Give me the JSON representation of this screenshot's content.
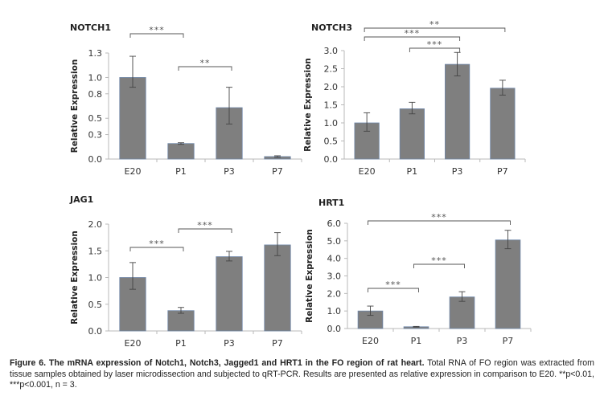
{
  "chart_data": [
    {
      "type": "bar",
      "title": "NOTCH1",
      "xlabel": "",
      "ylabel": "Relative Expression",
      "categories": [
        "E20",
        "P1",
        "P3",
        "P7"
      ],
      "values": [
        1.0,
        0.19,
        0.63,
        0.03
      ],
      "error_low": [
        0.88,
        0.18,
        0.43,
        0.02
      ],
      "error_high": [
        1.26,
        0.2,
        0.88,
        0.04
      ],
      "ylim": [
        0,
        1.3
      ],
      "yticks": [
        0.0,
        0.3,
        0.5,
        0.8,
        1.0,
        1.3
      ],
      "ytick_labels": [
        "0.0",
        "0.3",
        "0.5",
        "0.8",
        "1.0",
        "1.3"
      ],
      "grid": false,
      "bar_color": "#7f7f7f",
      "significance": [
        {
          "from": "E20",
          "to": "P1",
          "label": "***"
        },
        {
          "from": "P1",
          "to": "P3",
          "label": "**"
        }
      ]
    },
    {
      "type": "bar",
      "title": "NOTCH3",
      "xlabel": "",
      "ylabel": "Relative Expression",
      "categories": [
        "E20",
        "P1",
        "P3",
        "P7"
      ],
      "values": [
        1.0,
        1.39,
        2.62,
        1.96
      ],
      "error_low": [
        0.77,
        1.25,
        2.3,
        1.77
      ],
      "error_high": [
        1.28,
        1.57,
        2.95,
        2.18
      ],
      "ylim": [
        0,
        3.0
      ],
      "yticks": [
        0.0,
        0.5,
        1.0,
        1.5,
        2.0,
        2.5,
        3.0
      ],
      "ytick_labels": [
        "0.0",
        "0.5",
        "1.0",
        "1.5",
        "2.0",
        "2.5",
        "3.0"
      ],
      "grid": false,
      "bar_color": "#7f7f7f",
      "significance": [
        {
          "from": "E20",
          "to": "P7",
          "label": "**"
        },
        {
          "from": "E20",
          "to": "P3",
          "label": "***"
        },
        {
          "from": "P1",
          "to": "P3",
          "label": "***"
        }
      ]
    },
    {
      "type": "bar",
      "title": "JAG1",
      "xlabel": "",
      "ylabel": "Relative Expression",
      "categories": [
        "E20",
        "P1",
        "P3",
        "P7"
      ],
      "values": [
        1.0,
        0.38,
        1.39,
        1.61
      ],
      "error_low": [
        0.78,
        0.33,
        1.31,
        1.41
      ],
      "error_high": [
        1.28,
        0.44,
        1.49,
        1.84
      ],
      "ylim": [
        0,
        2.0
      ],
      "yticks": [
        0.0,
        0.5,
        1.0,
        1.5,
        2.0
      ],
      "ytick_labels": [
        "0.0",
        "0.5",
        "1.0",
        "1.5",
        "2.0"
      ],
      "grid": false,
      "bar_color": "#7f7f7f",
      "significance": [
        {
          "from": "E20",
          "to": "P1",
          "label": "***"
        },
        {
          "from": "P1",
          "to": "P3",
          "label": "***"
        }
      ]
    },
    {
      "type": "bar",
      "title": "HRT1",
      "xlabel": "",
      "ylabel": "Relative Expression",
      "categories": [
        "E20",
        "P1",
        "P3",
        "P7"
      ],
      "values": [
        1.0,
        0.1,
        1.8,
        5.05
      ],
      "error_low": [
        0.75,
        0.08,
        1.55,
        4.55
      ],
      "error_high": [
        1.28,
        0.12,
        2.1,
        5.6
      ],
      "ylim": [
        0,
        6.0
      ],
      "yticks": [
        0.0,
        1.0,
        2.0,
        3.0,
        4.0,
        5.0,
        6.0
      ],
      "ytick_labels": [
        "0.0",
        "1.0",
        "2.0",
        "3.0",
        "4.0",
        "5.0",
        "6.0"
      ],
      "grid": false,
      "bar_color": "#7f7f7f",
      "significance": [
        {
          "from": "E20",
          "to": "P7",
          "label": "***"
        },
        {
          "from": "P1",
          "to": "P3",
          "label": "***"
        },
        {
          "from": "E20",
          "to": "P1",
          "label": "***"
        }
      ]
    }
  ],
  "caption": {
    "bold": "Figure 6. The mRNA expression of Notch1, Notch3, Jagged1 and HRT1 in the FO region of rat heart.",
    "text": " Total RNA of FO region was extracted from tissue samples obtained by laser microdissection and subjected to qRT-PCR. Results are presented as relative expression in comparison to E20. **p<0.01, ***p<0.001, n = 3."
  }
}
